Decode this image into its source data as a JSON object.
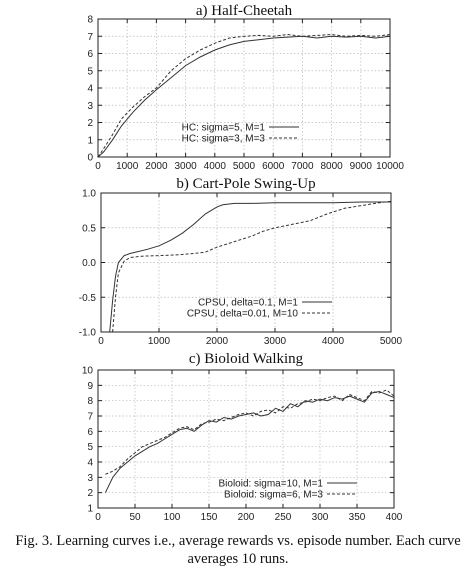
{
  "caption": "Fig. 3. Learning curves i.e., average rewards vs. episode number. Each curve averages 10 runs.",
  "chart_data": [
    {
      "type": "line",
      "title": "a) Half-Cheetah",
      "xlim": [
        0,
        10000
      ],
      "ylim": [
        0,
        8
      ],
      "xticks": [
        0,
        1000,
        2000,
        3000,
        4000,
        5000,
        6000,
        7000,
        8000,
        9000,
        10000
      ],
      "yticks": [
        0,
        1,
        2,
        3,
        4,
        5,
        6,
        7,
        8
      ],
      "grid": true,
      "legend_position": "bottom-right",
      "series": [
        {
          "name": "HC: sigma=5, M=1",
          "style": "solid",
          "x": [
            0,
            200,
            500,
            800,
            1200,
            1600,
            2000,
            2500,
            3000,
            3500,
            4000,
            4500,
            5000,
            5500,
            6000,
            6500,
            7000,
            7500,
            8000,
            8500,
            9000,
            9500,
            10000
          ],
          "y": [
            0,
            0.3,
            1.0,
            1.8,
            2.6,
            3.3,
            3.9,
            4.6,
            5.3,
            5.8,
            6.2,
            6.5,
            6.7,
            6.8,
            6.9,
            6.95,
            7.0,
            6.9,
            7.0,
            6.95,
            7.0,
            6.9,
            7.0
          ]
        },
        {
          "name": "HC: sigma=3, M=3",
          "style": "dashed",
          "x": [
            0,
            200,
            500,
            800,
            1200,
            1600,
            2000,
            2500,
            3000,
            3500,
            4000,
            4500,
            5000,
            5500,
            6000,
            6500,
            7000,
            7500,
            8000,
            8500,
            9000,
            9500,
            10000
          ],
          "y": [
            0,
            0.5,
            1.3,
            2.2,
            2.9,
            3.5,
            4.0,
            5.0,
            5.7,
            6.2,
            6.6,
            6.9,
            7.0,
            7.05,
            7.0,
            7.1,
            7.0,
            7.05,
            7.1,
            7.0,
            7.05,
            7.0,
            7.1
          ]
        }
      ]
    },
    {
      "type": "line",
      "title": "b) Cart-Pole Swing-Up",
      "xlim": [
        0,
        5000
      ],
      "ylim": [
        -1.0,
        1.0
      ],
      "xticks": [
        0,
        1000,
        2000,
        3000,
        4000,
        5000
      ],
      "yticks": [
        -1.0,
        -0.5,
        0.0,
        0.5,
        1.0
      ],
      "ytick_labels": [
        "-1.0",
        "-0.5",
        "0.0",
        "0.5",
        "1.0"
      ],
      "grid": true,
      "legend_position": "bottom-right",
      "series": [
        {
          "name": "CPSU, delta=0.1, M=1",
          "style": "solid",
          "x": [
            150,
            200,
            250,
            300,
            400,
            500,
            600,
            800,
            1000,
            1200,
            1400,
            1600,
            1800,
            1900,
            2000,
            2100,
            2300,
            2600,
            3000,
            3500,
            4000,
            4500,
            5000
          ],
          "y": [
            -1.0,
            -0.55,
            -0.2,
            0.0,
            0.1,
            0.13,
            0.15,
            0.19,
            0.24,
            0.32,
            0.42,
            0.55,
            0.7,
            0.75,
            0.8,
            0.83,
            0.85,
            0.85,
            0.86,
            0.86,
            0.86,
            0.87,
            0.87
          ]
        },
        {
          "name": "CPSU, delta=0.01, M=10",
          "style": "dashed",
          "x": [
            200,
            250,
            300,
            400,
            500,
            700,
            1000,
            1300,
            1600,
            1800,
            2000,
            2300,
            2600,
            2800,
            3000,
            3300,
            3600,
            3900,
            4200,
            4500,
            4800,
            5000
          ],
          "y": [
            -1.0,
            -0.5,
            -0.15,
            0.02,
            0.07,
            0.09,
            0.1,
            0.11,
            0.13,
            0.15,
            0.22,
            0.3,
            0.38,
            0.45,
            0.5,
            0.55,
            0.6,
            0.7,
            0.78,
            0.82,
            0.86,
            0.88
          ]
        }
      ]
    },
    {
      "type": "line",
      "title": "c) Bioloid Walking",
      "xlim": [
        0,
        400
      ],
      "ylim": [
        1,
        10
      ],
      "xticks": [
        0,
        50,
        100,
        150,
        200,
        250,
        300,
        350,
        400
      ],
      "yticks": [
        1,
        2,
        3,
        4,
        5,
        6,
        7,
        8,
        9,
        10
      ],
      "grid": true,
      "legend_position": "bottom-right",
      "series": [
        {
          "name": "Bioloid: sigma=10, M=1",
          "style": "solid",
          "x": [
            10,
            20,
            30,
            40,
            50,
            60,
            70,
            80,
            90,
            100,
            110,
            120,
            130,
            140,
            150,
            160,
            170,
            180,
            190,
            200,
            210,
            220,
            230,
            240,
            250,
            260,
            270,
            280,
            290,
            300,
            310,
            320,
            330,
            340,
            350,
            360,
            370,
            380,
            390,
            400
          ],
          "y": [
            2.0,
            3.0,
            3.6,
            4.0,
            4.4,
            4.7,
            5.0,
            5.2,
            5.5,
            5.8,
            6.1,
            6.2,
            6.0,
            6.4,
            6.7,
            6.6,
            6.9,
            6.8,
            7.0,
            7.1,
            7.2,
            7.0,
            7.1,
            7.5,
            7.3,
            7.8,
            7.6,
            8.0,
            7.9,
            8.1,
            8.0,
            8.2,
            8.1,
            8.3,
            8.1,
            7.9,
            8.5,
            8.6,
            8.4,
            8.2
          ]
        },
        {
          "name": "Bioloid: sigma=6, M=3",
          "style": "dashed",
          "x": [
            10,
            20,
            30,
            40,
            50,
            60,
            70,
            80,
            90,
            100,
            110,
            120,
            130,
            140,
            150,
            160,
            170,
            180,
            190,
            200,
            210,
            220,
            230,
            240,
            250,
            260,
            270,
            280,
            290,
            300,
            310,
            320,
            330,
            340,
            350,
            360,
            370,
            380,
            390,
            400
          ],
          "y": [
            3.2,
            3.4,
            3.7,
            4.2,
            4.6,
            5.0,
            5.2,
            5.4,
            5.6,
            5.9,
            6.2,
            6.3,
            6.1,
            6.5,
            6.6,
            6.8,
            6.7,
            6.9,
            7.1,
            7.2,
            7.0,
            7.3,
            7.4,
            7.2,
            7.6,
            7.5,
            7.8,
            7.9,
            8.1,
            8.0,
            8.2,
            8.3,
            8.0,
            8.4,
            8.2,
            8.0,
            8.6,
            8.5,
            8.7,
            8.3
          ]
        }
      ]
    }
  ]
}
